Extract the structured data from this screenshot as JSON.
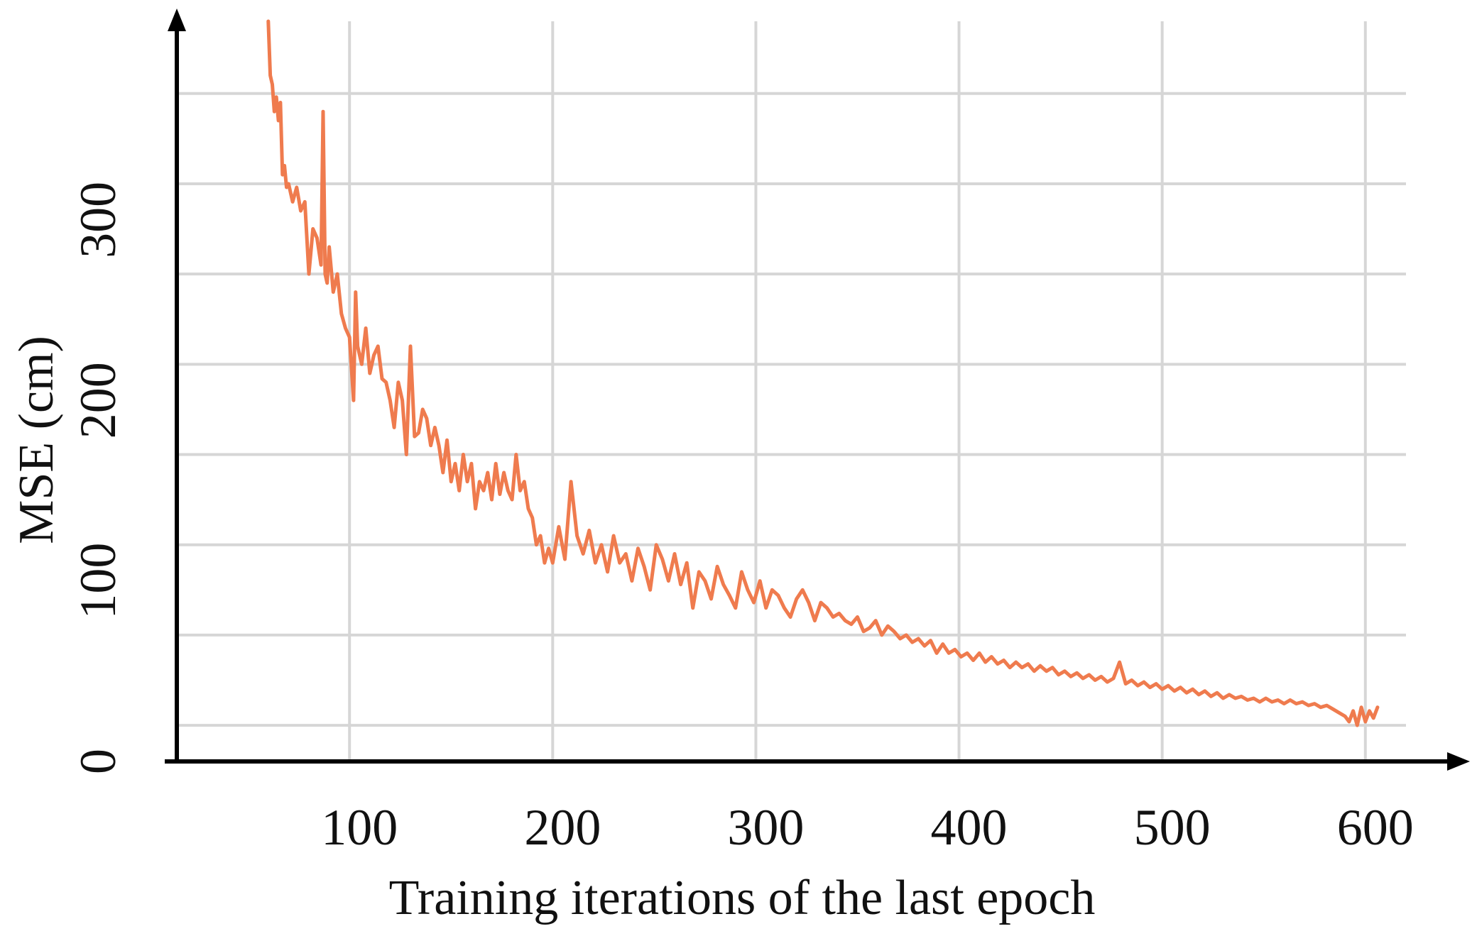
{
  "chart_data": {
    "type": "line",
    "title": "",
    "xlabel": "Training iterations of the last epoch",
    "ylabel": "MSE (cm)",
    "xlim": [
      15,
      620
    ],
    "ylim": [
      0,
      410
    ],
    "x_ticks": [
      100,
      200,
      300,
      400,
      500,
      600
    ],
    "x_tick_labels": [
      "100",
      "200",
      "300",
      "400",
      "500",
      "600"
    ],
    "y_ticks": [
      0,
      100,
      200,
      300
    ],
    "y_tick_labels": [
      "0",
      "100",
      "200",
      "300"
    ],
    "x_gridlines": [
      100,
      200,
      300,
      400,
      500,
      600
    ],
    "y_gridlines": [
      20,
      70,
      120,
      170,
      220,
      270,
      320,
      370
    ],
    "grid": true,
    "legend": "none",
    "line_color": "#ef7b4e",
    "series": [
      {
        "x": [
          60,
          61,
          62,
          63,
          64,
          65,
          66,
          67,
          68,
          69,
          70,
          72,
          74,
          76,
          78,
          80,
          82,
          84,
          86,
          87,
          88,
          89,
          90,
          92,
          94,
          96,
          98,
          100,
          102,
          103,
          104,
          106,
          108,
          110,
          112,
          114,
          116,
          118,
          120,
          122,
          124,
          126,
          128,
          130,
          132,
          134,
          136,
          138,
          140,
          142,
          144,
          146,
          148,
          150,
          152,
          154,
          156,
          158,
          160,
          162,
          164,
          166,
          168,
          170,
          172,
          174,
          176,
          178,
          180,
          182,
          184,
          186,
          188,
          190,
          192,
          194,
          196,
          198,
          200,
          203,
          206,
          209,
          212,
          215,
          218,
          221,
          224,
          227,
          230,
          233,
          236,
          239,
          242,
          245,
          248,
          251,
          254,
          257,
          260,
          263,
          266,
          269,
          272,
          275,
          278,
          281,
          284,
          287,
          290,
          293,
          296,
          299,
          302,
          305,
          308,
          311,
          314,
          317,
          320,
          323,
          326,
          329,
          332,
          335,
          338,
          341,
          344,
          347,
          350,
          353,
          356,
          359,
          362,
          365,
          368,
          371,
          374,
          377,
          380,
          383,
          386,
          389,
          392,
          395,
          398,
          401,
          404,
          407,
          410,
          413,
          416,
          419,
          422,
          425,
          428,
          431,
          434,
          437,
          440,
          443,
          446,
          449,
          452,
          455,
          458,
          461,
          464,
          467,
          470,
          473,
          476,
          479,
          482,
          485,
          488,
          491,
          494,
          497,
          500,
          503,
          506,
          509,
          512,
          515,
          518,
          521,
          524,
          527,
          530,
          533,
          536,
          539,
          542,
          545,
          548,
          551,
          554,
          557,
          560,
          563,
          566,
          569,
          572,
          575,
          578,
          581,
          584,
          587,
          590,
          592,
          594,
          596,
          598,
          600,
          602,
          604,
          606
        ],
        "y": [
          410,
          380,
          375,
          360,
          368,
          355,
          365,
          325,
          330,
          318,
          320,
          310,
          318,
          305,
          310,
          270,
          295,
          290,
          275,
          360,
          270,
          265,
          285,
          260,
          270,
          248,
          240,
          235,
          200,
          260,
          230,
          220,
          240,
          215,
          225,
          230,
          212,
          210,
          200,
          185,
          210,
          200,
          170,
          230,
          180,
          182,
          195,
          190,
          175,
          185,
          175,
          160,
          178,
          155,
          165,
          150,
          170,
          155,
          165,
          140,
          155,
          150,
          160,
          145,
          165,
          148,
          160,
          150,
          145,
          170,
          150,
          155,
          140,
          135,
          120,
          125,
          110,
          118,
          110,
          130,
          112,
          155,
          125,
          115,
          128,
          110,
          120,
          105,
          125,
          110,
          115,
          100,
          118,
          108,
          95,
          120,
          112,
          100,
          115,
          98,
          110,
          85,
          105,
          100,
          90,
          108,
          98,
          92,
          85,
          105,
          95,
          88,
          100,
          85,
          95,
          92,
          85,
          80,
          90,
          95,
          88,
          78,
          88,
          85,
          80,
          82,
          78,
          76,
          80,
          72,
          74,
          78,
          70,
          75,
          72,
          68,
          70,
          66,
          68,
          64,
          67,
          60,
          65,
          60,
          62,
          58,
          60,
          56,
          60,
          55,
          58,
          54,
          56,
          52,
          55,
          52,
          54,
          50,
          53,
          50,
          52,
          48,
          50,
          47,
          49,
          46,
          48,
          45,
          47,
          44,
          46,
          55,
          43,
          45,
          42,
          44,
          41,
          43,
          40,
          42,
          39,
          41,
          38,
          40,
          37,
          39,
          36,
          38,
          35,
          37,
          35,
          36,
          34,
          35,
          33,
          35,
          33,
          34,
          32,
          34,
          32,
          33,
          31,
          32,
          30,
          31,
          29,
          27,
          25,
          22,
          28,
          20,
          30,
          22,
          28,
          24,
          30
        ]
      }
    ]
  }
}
